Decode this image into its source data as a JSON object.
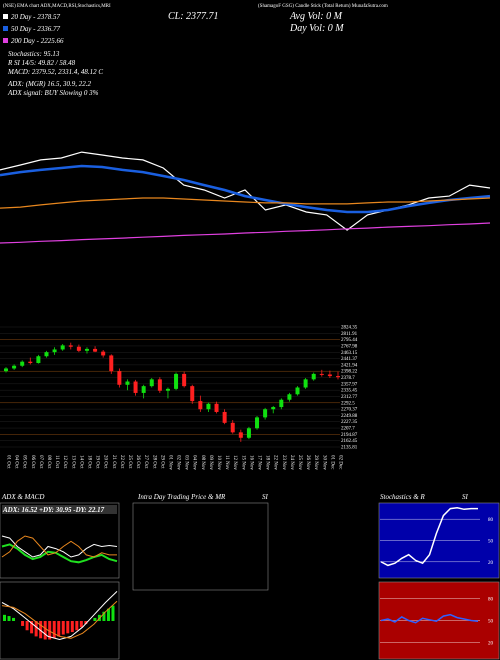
{
  "header": {
    "top_left": "(NSE) EMA chart ADX,MACD,RSI,Stochastics,MRI",
    "top_right": "(ShamagoF GSG) Candle Stick (Total Return) MunafaSutra.com",
    "ma20": "20 Day - 2378.57",
    "ma50": "50 Day - 2336.77",
    "ma200": "200 Day - 2225.66",
    "close": "CL: 2377.71",
    "avg_vol": "Avg Vol: 0  M",
    "day_vol": "Day Vol: 0  M",
    "stoch": "Stochastics: 95.13",
    "rsi": "R          SI 14/5: 49.82 / 58.48",
    "macd": "MACD: 2379.52, 2331.4, 48.12  C",
    "adx": "ADX:                        (MGR) 16.5, 30.9, 22.2",
    "adx_signal": "ADX  signal:                        BUY Slowing 0 3%"
  },
  "ma_panel": {
    "ylim": [
      2150,
      2600
    ],
    "series": [
      {
        "name": "Price",
        "color": "#ffffff",
        "values": [
          2498,
          2518,
          2539,
          2547,
          2571,
          2559,
          2547,
          2539,
          2506,
          2436,
          2416,
          2383,
          2416,
          2334,
          2355,
          2326,
          2314,
          2252,
          2314,
          2334,
          2355,
          2383,
          2391,
          2436,
          2424
        ]
      },
      {
        "name": "20 Day",
        "color": "#1a5fe0",
        "values": [
          2477,
          2489,
          2498,
          2506,
          2514,
          2510,
          2498,
          2489,
          2473,
          2457,
          2436,
          2416,
          2391,
          2375,
          2359,
          2346,
          2334,
          2326,
          2326,
          2334,
          2350,
          2363,
          2375,
          2383,
          2391
        ]
      },
      {
        "name": "50 Day",
        "color": "#e8871e",
        "values": [
          2342,
          2346,
          2355,
          2363,
          2371,
          2375,
          2379,
          2383,
          2383,
          2379,
          2375,
          2371,
          2367,
          2363,
          2363,
          2359,
          2359,
          2359,
          2363,
          2367,
          2367,
          2371,
          2375,
          2379,
          2383
        ]
      },
      {
        "name": "200 Day",
        "color": "#e040e0",
        "values": [
          2199,
          2202,
          2206,
          2209,
          2213,
          2216,
          2219,
          2223,
          2226,
          2230,
          2233,
          2236,
          2240,
          2243,
          2247,
          2250,
          2253,
          2257,
          2260,
          2264,
          2267,
          2270,
          2274,
          2277,
          2281
        ]
      }
    ]
  },
  "candles": {
    "ylim": [
      2100,
      2560
    ],
    "ohlc": [
      [
        2390,
        2405,
        2385,
        2400
      ],
      [
        2400,
        2415,
        2395,
        2410
      ],
      [
        2410,
        2430,
        2405,
        2425
      ],
      [
        2425,
        2440,
        2415,
        2420
      ],
      [
        2420,
        2450,
        2418,
        2445
      ],
      [
        2445,
        2465,
        2440,
        2460
      ],
      [
        2460,
        2478,
        2450,
        2470
      ],
      [
        2470,
        2490,
        2465,
        2485
      ],
      [
        2485,
        2495,
        2470,
        2480
      ],
      [
        2480,
        2488,
        2460,
        2465
      ],
      [
        2465,
        2478,
        2455,
        2472
      ],
      [
        2472,
        2482,
        2460,
        2462
      ],
      [
        2462,
        2468,
        2440,
        2448
      ],
      [
        2448,
        2452,
        2380,
        2390
      ],
      [
        2390,
        2400,
        2330,
        2340
      ],
      [
        2340,
        2360,
        2320,
        2352
      ],
      [
        2352,
        2358,
        2300,
        2310
      ],
      [
        2310,
        2340,
        2290,
        2335
      ],
      [
        2335,
        2365,
        2330,
        2360
      ],
      [
        2360,
        2368,
        2310,
        2318
      ],
      [
        2318,
        2330,
        2290,
        2325
      ],
      [
        2325,
        2385,
        2320,
        2380
      ],
      [
        2380,
        2388,
        2330,
        2335
      ],
      [
        2335,
        2340,
        2270,
        2280
      ],
      [
        2280,
        2300,
        2240,
        2250
      ],
      [
        2250,
        2275,
        2240,
        2270
      ],
      [
        2270,
        2278,
        2235,
        2240
      ],
      [
        2240,
        2250,
        2195,
        2200
      ],
      [
        2200,
        2210,
        2160,
        2165
      ],
      [
        2165,
        2175,
        2130,
        2145
      ],
      [
        2145,
        2185,
        2140,
        2180
      ],
      [
        2180,
        2225,
        2175,
        2220
      ],
      [
        2220,
        2255,
        2212,
        2250
      ],
      [
        2250,
        2262,
        2235,
        2258
      ],
      [
        2258,
        2290,
        2250,
        2285
      ],
      [
        2285,
        2310,
        2278,
        2305
      ],
      [
        2305,
        2335,
        2300,
        2330
      ],
      [
        2330,
        2365,
        2325,
        2360
      ],
      [
        2360,
        2385,
        2355,
        2380
      ],
      [
        2380,
        2395,
        2370,
        2378
      ],
      [
        2378,
        2392,
        2365,
        2372
      ],
      [
        2372,
        2388,
        2360,
        2368
      ]
    ],
    "dates": [
      "01 Oct",
      "04 Oct",
      "05 Oct",
      "06 Oct",
      "07 Oct",
      "08 Oct",
      "11 Oct",
      "12 Oct",
      "13 Oct",
      "14 Oct",
      "18 Oct",
      "19 Oct",
      "20 Oct",
      "21 Oct",
      "22 Oct",
      "25 Oct",
      "26 Oct",
      "27 Oct",
      "28 Oct",
      "29 Oct",
      "01 Nov",
      "02 Nov",
      "03 Nov",
      "04 Nov",
      "08 Nov",
      "09 Nov",
      "10 Nov",
      "11 Nov",
      "12 Nov",
      "15 Nov",
      "16 Nov",
      "17 Nov",
      "18 Nov",
      "22 Nov",
      "23 Nov",
      "24 Nov",
      "25 Nov",
      "26 Nov",
      "29 Nov",
      "30 Nov",
      "01 Dec",
      "02 Dec"
    ],
    "price_labels": [
      "2824.35",
      "2811.91",
      "2795.44",
      "2767.98",
      "2463.15",
      "2441.37",
      "2421.94",
      "2398.22",
      "2378.7",
      "2357.97",
      "2335.45",
      "2312.77",
      "2292.5",
      "2270.37",
      "2249.88",
      "2227.35",
      "2207.7",
      "2194.87",
      "2162.45",
      "2135.81"
    ]
  },
  "panels": {
    "adx_title": "ADX  & MACD",
    "adx_text": "ADX: 16.52  +DY: 30.95  -DY: 22.17",
    "intraday_title": "Intra  Day Trading Price  & MR",
    "intraday_si": "SI",
    "stoch_title": "Stochastics & R",
    "stoch_si": "SI",
    "adx": {
      "ylim": [
        0,
        60
      ],
      "series": [
        {
          "name": "ADX",
          "color": "#20e020",
          "values": [
            30,
            32,
            28,
            22,
            18,
            20,
            25,
            24,
            20,
            16,
            15,
            17,
            20,
            22,
            18,
            16
          ]
        },
        {
          "name": "+DI",
          "color": "#ffffff",
          "values": [
            40,
            38,
            30,
            25,
            20,
            22,
            30,
            28,
            25,
            20,
            22,
            28,
            32,
            30,
            31,
            30
          ]
        },
        {
          "name": "-DI",
          "color": "#e8871e",
          "values": [
            20,
            25,
            35,
            40,
            38,
            30,
            22,
            24,
            30,
            35,
            30,
            22,
            20,
            24,
            22,
            22
          ]
        }
      ]
    },
    "macd": {
      "ylim": [
        -60,
        60
      ],
      "hist": [
        10,
        8,
        5,
        0,
        -8,
        -15,
        -20,
        -25,
        -28,
        -30,
        -30,
        -28,
        -25,
        -22,
        -20,
        -18,
        -15,
        -10,
        -5,
        0,
        5,
        10,
        15,
        20,
        25
      ],
      "series": [
        {
          "name": "MACD",
          "color": "#ffffff",
          "values": [
            30,
            20,
            5,
            -10,
            -25,
            -30,
            -25,
            -10,
            10,
            30,
            48
          ]
        },
        {
          "name": "Signal",
          "color": "#e8871e",
          "values": [
            25,
            22,
            12,
            -2,
            -15,
            -25,
            -28,
            -20,
            -5,
            15,
            32
          ]
        }
      ]
    },
    "stoch": {
      "ylim": [
        0,
        100
      ],
      "yticks": [
        80,
        50,
        20
      ],
      "values": [
        20,
        15,
        18,
        25,
        30,
        22,
        18,
        30,
        60,
        85,
        95,
        96,
        94,
        95,
        95
      ]
    },
    "rsi": {
      "ylim": [
        0,
        100
      ],
      "yticks": [
        80,
        50,
        20
      ],
      "values": [
        50,
        52,
        48,
        55,
        50,
        47,
        53,
        51,
        49,
        56,
        58,
        54,
        52,
        50,
        49
      ]
    }
  }
}
